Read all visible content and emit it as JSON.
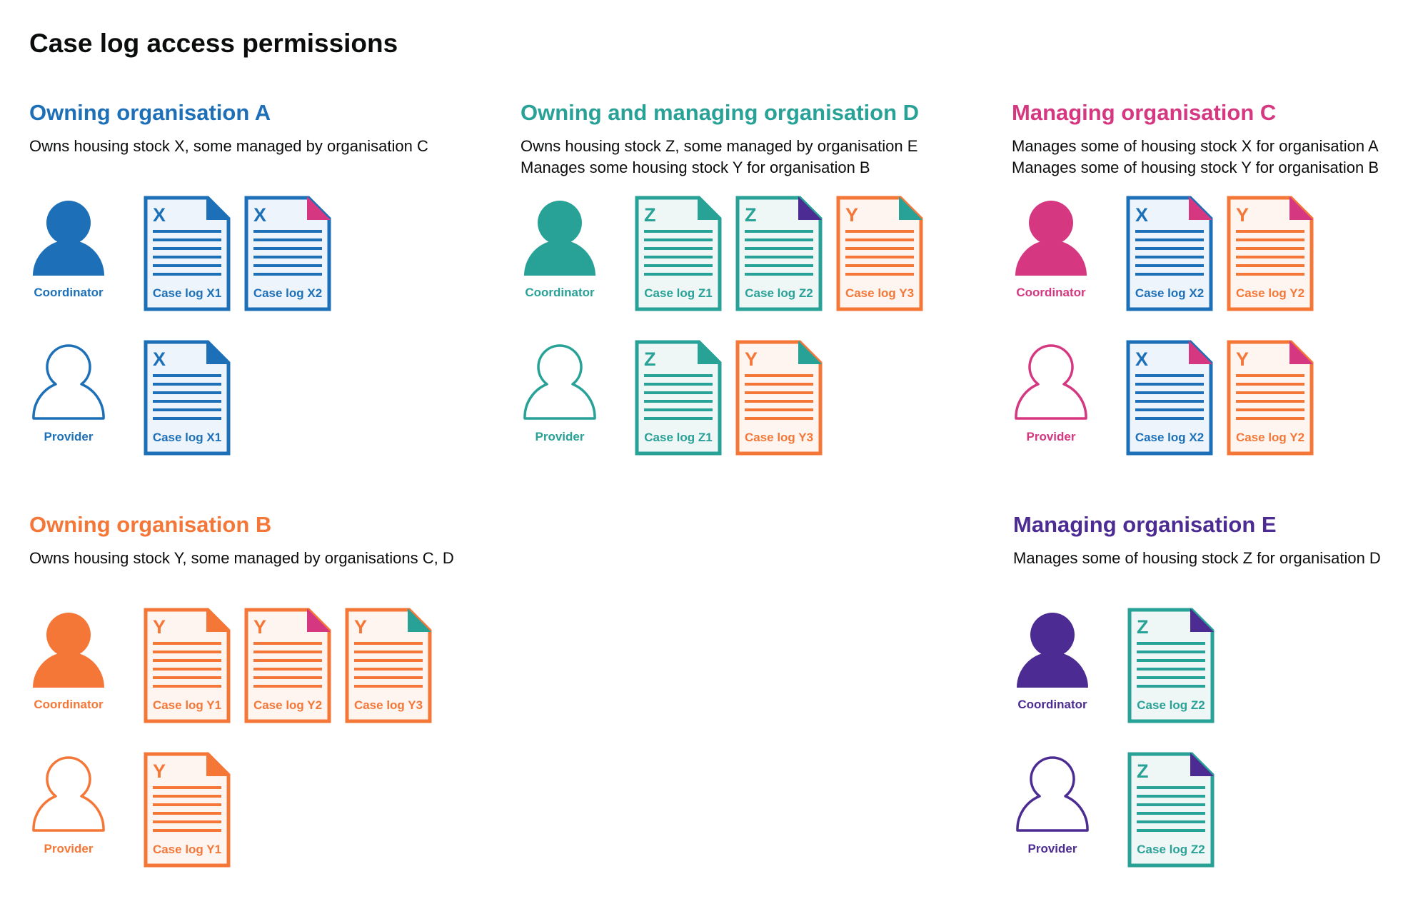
{
  "title": "Case log access permissions",
  "colors": {
    "blue": "#1d70b8",
    "blue_fill": "#edf4fb",
    "teal": "#28a197",
    "teal_fill": "#eef7f6",
    "pink": "#d53880",
    "orange": "#f47738",
    "orange_fill": "#fef5f0",
    "purple": "#4c2c92"
  },
  "sections": [
    {
      "heading": "Owning organisation A",
      "color": "blue",
      "description": [
        "Owns housing stock X, some managed by organisation C"
      ],
      "rows": [
        {
          "role": "Coordinator",
          "icon": "person-filled-icon",
          "docs": [
            {
              "letter": "X",
              "label": "Case log X1",
              "color": "blue",
              "corner": "blue"
            },
            {
              "letter": "X",
              "label": "Case log X2",
              "color": "blue",
              "corner": "pink"
            }
          ]
        },
        {
          "role": "Provider",
          "icon": "person-outline-icon",
          "docs": [
            {
              "letter": "X",
              "label": "Case log X1",
              "color": "blue",
              "corner": "blue"
            }
          ]
        }
      ]
    },
    {
      "heading": "Owning and managing organisation D",
      "color": "teal",
      "description": [
        "Owns housing stock Z, some managed by organisation E",
        "Manages some housing stock Y for organisation B"
      ],
      "rows": [
        {
          "role": "Coordinator",
          "icon": "person-filled-icon",
          "docs": [
            {
              "letter": "Z",
              "label": "Case log Z1",
              "color": "teal",
              "corner": "teal"
            },
            {
              "letter": "Z",
              "label": "Case log Z2",
              "color": "teal",
              "corner": "purple"
            },
            {
              "letter": "Y",
              "label": "Case log Y3",
              "color": "orange",
              "corner": "teal"
            }
          ]
        },
        {
          "role": "Provider",
          "icon": "person-outline-icon",
          "docs": [
            {
              "letter": "Z",
              "label": "Case log Z1",
              "color": "teal",
              "corner": "teal"
            },
            {
              "letter": "Y",
              "label": "Case log Y3",
              "color": "orange",
              "corner": "teal"
            }
          ]
        }
      ]
    },
    {
      "heading": "Managing organisation C",
      "color": "pink",
      "description": [
        "Manages some of housing stock X for organisation A",
        "Manages some of housing stock Y for organisation B"
      ],
      "rows": [
        {
          "role": "Coordinator",
          "icon": "person-filled-icon",
          "docs": [
            {
              "letter": "X",
              "label": "Case log X2",
              "color": "blue",
              "corner": "pink"
            },
            {
              "letter": "Y",
              "label": "Case log Y2",
              "color": "orange",
              "corner": "pink"
            }
          ]
        },
        {
          "role": "Provider",
          "icon": "person-outline-icon",
          "docs": [
            {
              "letter": "X",
              "label": "Case log X2",
              "color": "blue",
              "corner": "pink"
            },
            {
              "letter": "Y",
              "label": "Case log Y2",
              "color": "orange",
              "corner": "pink"
            }
          ]
        }
      ]
    },
    {
      "heading": "Owning organisation B",
      "color": "orange",
      "description": [
        "Owns housing stock Y, some managed by organisations C, D"
      ],
      "rows": [
        {
          "role": "Coordinator",
          "icon": "person-filled-icon",
          "docs": [
            {
              "letter": "Y",
              "label": "Case log Y1",
              "color": "orange",
              "corner": "orange"
            },
            {
              "letter": "Y",
              "label": "Case log Y2",
              "color": "orange",
              "corner": "pink"
            },
            {
              "letter": "Y",
              "label": "Case log Y3",
              "color": "orange",
              "corner": "teal"
            }
          ]
        },
        {
          "role": "Provider",
          "icon": "person-outline-icon",
          "docs": [
            {
              "letter": "Y",
              "label": "Case log Y1",
              "color": "orange",
              "corner": "orange"
            }
          ]
        }
      ]
    },
    {
      "heading": "Managing organisation E",
      "color": "purple",
      "description": [
        "Manages some of housing stock Z for organisation D"
      ],
      "rows": [
        {
          "role": "Coordinator",
          "icon": "person-filled-icon",
          "docs": [
            {
              "letter": "Z",
              "label": "Case log Z2",
              "color": "teal",
              "corner": "purple"
            }
          ]
        },
        {
          "role": "Provider",
          "icon": "person-outline-icon",
          "docs": [
            {
              "letter": "Z",
              "label": "Case log Z2",
              "color": "teal",
              "corner": "purple"
            }
          ]
        }
      ]
    }
  ]
}
